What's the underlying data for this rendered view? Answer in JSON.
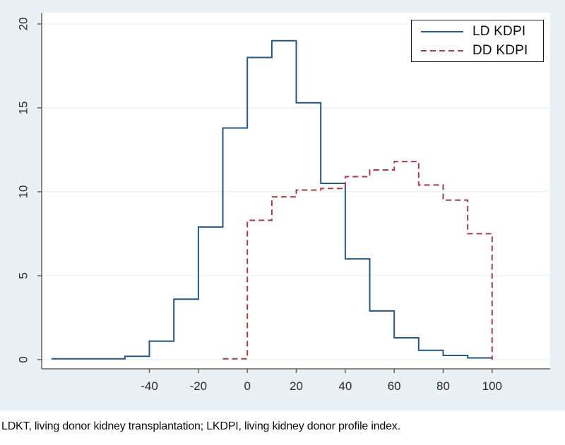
{
  "caption": "LDKT, living donor kidney transplantation; LKDPI, living kidney donor profile index.",
  "colors": {
    "background": "#e9eff2",
    "plot": "#ffffff",
    "grid": "#e3edf0",
    "axis": "#636363",
    "tick_text": "#2b2b2b",
    "ld_navy": "#26587f",
    "dd_red": "#a33e48"
  },
  "chart_data": {
    "type": "step-histogram",
    "title": "",
    "xlabel": "",
    "ylabel": "",
    "grid": true,
    "legend_position": "top-right",
    "x_ticks": [
      -40,
      -20,
      0,
      20,
      40,
      60,
      80,
      100
    ],
    "y_ticks": [
      0,
      5,
      10,
      15,
      20
    ],
    "xlim": [
      -84,
      123.7
    ],
    "ylim": [
      -0.55,
      20.67
    ],
    "series": [
      {
        "name": "LD KDPI",
        "style": "solid",
        "color": "#26587f",
        "bin_edges": [
          -80,
          -70,
          -60,
          -50,
          -40,
          -30,
          -20,
          -10,
          0,
          10,
          20,
          30,
          40,
          50,
          60,
          70,
          80,
          90,
          100
        ],
        "values": [
          0.05,
          0.05,
          0.05,
          0.2,
          1.1,
          3.6,
          7.9,
          13.8,
          18.0,
          19.0,
          15.3,
          10.5,
          6.0,
          2.9,
          1.3,
          0.55,
          0.25,
          0.1
        ]
      },
      {
        "name": "DD KDPI",
        "style": "dashed",
        "color": "#a33e48",
        "bin_edges": [
          -10,
          0,
          10,
          20,
          30,
          40,
          50,
          60,
          70,
          80,
          90,
          100
        ],
        "values": [
          0.05,
          8.3,
          9.7,
          10.1,
          10.2,
          10.9,
          11.3,
          11.8,
          10.4,
          9.5,
          7.5
        ]
      }
    ]
  }
}
